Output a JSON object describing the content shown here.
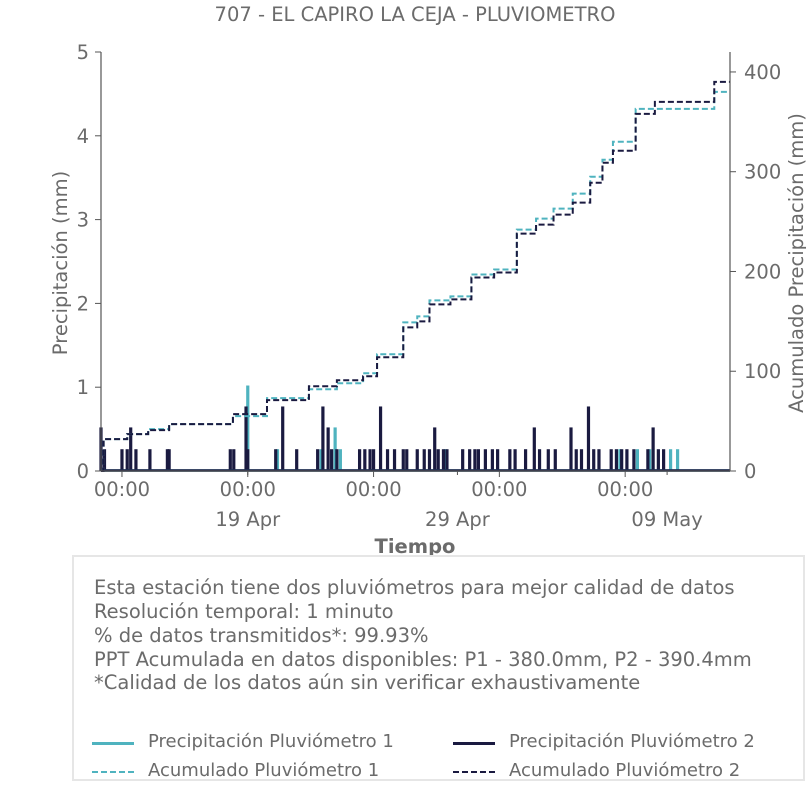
{
  "chart_data": {
    "type": "line",
    "title": "707 - EL CAPIRO LA CEJA - PLUVIOMETRO",
    "xlabel": "Tiempo",
    "ylabel_left": "Precipitación (mm)",
    "ylabel_right": "Acumulado Precipitación (mm)",
    "x_range_days": [
      "2024-04-12",
      "2024-05-12"
    ],
    "ylim_left": [
      0,
      5
    ],
    "ylim_right": [
      0,
      420
    ],
    "yticks_left": [
      "0",
      "1",
      "2",
      "3",
      "4",
      "5"
    ],
    "yticks_right": [
      "0",
      "100",
      "200",
      "300",
      "400"
    ],
    "xticks_major": [
      {
        "date": "2024-04-13",
        "label": "00:00"
      },
      {
        "date": "2024-04-19",
        "label": "00:00"
      },
      {
        "date": "2024-04-25",
        "label": "00:00"
      },
      {
        "date": "2024-05-01",
        "label": "00:00"
      },
      {
        "date": "2024-05-07",
        "label": "00:00"
      }
    ],
    "xticks_minor": [
      {
        "date": "2024-04-19",
        "label": "19 Apr"
      },
      {
        "date": "2024-04-29",
        "label": "29 Apr"
      },
      {
        "date": "2024-05-09",
        "label": "09 May"
      }
    ],
    "colors": {
      "p1": "#4fb3bf",
      "p2": "#1a1a40",
      "axis": "#555555",
      "text": "#6b6b6b"
    },
    "series": [
      {
        "name": "Precipitación Pluviómetro 1",
        "style": "bars",
        "color": "#4fb3bf",
        "x": [
          "2024-04-19T00:00",
          "2024-04-20T10:00",
          "2024-04-22T12:00",
          "2024-04-23T04:00",
          "2024-04-23T10:00",
          "2024-04-28T10:00",
          "2024-05-06T18:00",
          "2024-05-07T14:00",
          "2024-05-08T04:00",
          "2024-05-09T04:00",
          "2024-05-09T12:00"
        ],
        "y": [
          1.02,
          0.26,
          0.26,
          0.52,
          0.26,
          0.26,
          0.26,
          0.26,
          0.26,
          0.26,
          0.26
        ]
      },
      {
        "name": "Precipitación Pluviómetro 2",
        "style": "bars",
        "color": "#1a1a40",
        "x": [
          "2024-04-12T00:00",
          "2024-04-12T04:00",
          "2024-04-13T00:00",
          "2024-04-13T06:00",
          "2024-04-13T10:00",
          "2024-04-13T16:00",
          "2024-04-14T08:00",
          "2024-04-15T04:00",
          "2024-04-15T06:00",
          "2024-04-18T04:00",
          "2024-04-18T08:00",
          "2024-04-18T22:00",
          "2024-04-19T00:00",
          "2024-04-20T08:00",
          "2024-04-20T16:00",
          "2024-04-21T08:00",
          "2024-04-22T08:00",
          "2024-04-22T14:00",
          "2024-04-22T20:00",
          "2024-04-23T00:00",
          "2024-04-23T06:00",
          "2024-04-24T08:00",
          "2024-04-24T14:00",
          "2024-04-24T20:00",
          "2024-04-25T00:00",
          "2024-04-25T08:00",
          "2024-04-25T16:00",
          "2024-04-26T00:00",
          "2024-04-26T10:00",
          "2024-04-26T14:00",
          "2024-04-27T02:00",
          "2024-04-27T10:00",
          "2024-04-27T16:00",
          "2024-04-27T22:00",
          "2024-04-28T02:00",
          "2024-04-28T08:00",
          "2024-04-28T12:00",
          "2024-04-29T06:00",
          "2024-04-29T14:00",
          "2024-04-29T20:00",
          "2024-04-30T00:00",
          "2024-04-30T08:00",
          "2024-04-30T16:00",
          "2024-04-30T22:00",
          "2024-05-01T12:00",
          "2024-05-01T18:00",
          "2024-05-02T06:00",
          "2024-05-02T16:00",
          "2024-05-02T22:00",
          "2024-05-03T08:00",
          "2024-05-03T16:00",
          "2024-05-04T10:00",
          "2024-05-04T16:00",
          "2024-05-04T22:00",
          "2024-05-05T06:00",
          "2024-05-05T12:00",
          "2024-05-05T18:00",
          "2024-05-06T08:00",
          "2024-05-06T14:00",
          "2024-05-06T20:00",
          "2024-05-07T02:00",
          "2024-05-07T10:00",
          "2024-05-08T02:00",
          "2024-05-08T08:00",
          "2024-05-08T14:00",
          "2024-05-08T20:00"
        ],
        "y": [
          0.52,
          0.26,
          0.26,
          0.26,
          0.52,
          0.26,
          0.26,
          0.26,
          0.26,
          0.26,
          0.26,
          0.77,
          0.26,
          0.26,
          0.77,
          0.26,
          0.26,
          0.77,
          0.52,
          0.26,
          0.26,
          0.26,
          0.26,
          0.26,
          0.26,
          0.77,
          0.26,
          0.26,
          0.26,
          0.26,
          0.26,
          0.26,
          0.26,
          0.52,
          0.26,
          0.26,
          0.26,
          0.26,
          0.26,
          0.26,
          0.26,
          0.26,
          0.26,
          0.26,
          0.26,
          0.26,
          0.26,
          0.52,
          0.26,
          0.26,
          0.26,
          0.52,
          0.26,
          0.26,
          0.77,
          0.26,
          0.26,
          0.26,
          0.26,
          0.26,
          0.26,
          0.26,
          0.26,
          0.52,
          0.26,
          0.26
        ]
      },
      {
        "name": "Acumulado Pluviómetro 1",
        "style": "dashed-step",
        "color": "#4fb3bf",
        "x": [
          "2024-04-12T00:00",
          "2024-04-12T03:00",
          "2024-04-13T06:00",
          "2024-04-14T06:00",
          "2024-04-15T06:00",
          "2024-04-18T07:00",
          "2024-04-19T22:00",
          "2024-04-21T22:00",
          "2024-04-23T06:00",
          "2024-04-24T12:00",
          "2024-04-25T04:00",
          "2024-04-26T10:00",
          "2024-04-27T02:00",
          "2024-04-27T16:00",
          "2024-04-28T16:00",
          "2024-04-29T16:00",
          "2024-04-30T18:00",
          "2024-05-01T20:00",
          "2024-05-02T18:00",
          "2024-05-03T14:00",
          "2024-05-04T12:00",
          "2024-05-05T08:00",
          "2024-05-05T22:00",
          "2024-05-06T10:00",
          "2024-05-07T12:00",
          "2024-05-08T10:00",
          "2024-05-11T06:00",
          "2024-05-12T00:00"
        ],
        "y": [
          0,
          32,
          37,
          42,
          47,
          55,
          73,
          82,
          88,
          98,
          117,
          149,
          155,
          171,
          175,
          197,
          202,
          242,
          253,
          263,
          278,
          295,
          312,
          330,
          363,
          363,
          380,
          380
        ]
      },
      {
        "name": "Acumulado Pluviómetro 2",
        "style": "dashed-step",
        "color": "#1a1a40",
        "x": [
          "2024-04-12T00:00",
          "2024-04-12T03:00",
          "2024-04-13T06:00",
          "2024-04-14T06:00",
          "2024-04-15T06:00",
          "2024-04-18T07:00",
          "2024-04-19T22:00",
          "2024-04-21T22:00",
          "2024-04-23T06:00",
          "2024-04-24T12:00",
          "2024-04-25T04:00",
          "2024-04-26T10:00",
          "2024-04-27T02:00",
          "2024-04-27T16:00",
          "2024-04-28T16:00",
          "2024-04-29T16:00",
          "2024-04-30T18:00",
          "2024-05-01T20:00",
          "2024-05-02T18:00",
          "2024-05-03T14:00",
          "2024-05-04T12:00",
          "2024-05-05T08:00",
          "2024-05-05T22:00",
          "2024-05-06T10:00",
          "2024-05-07T12:00",
          "2024-05-08T10:00",
          "2024-05-11T06:00",
          "2024-05-12T00:00"
        ],
        "y": [
          0,
          32,
          37,
          41,
          47,
          57,
          71,
          85,
          91,
          95,
          114,
          144,
          150,
          167,
          172,
          194,
          199,
          238,
          247,
          257,
          269,
          289,
          309,
          321,
          358,
          370,
          390,
          390
        ]
      }
    ]
  },
  "info": {
    "lines": [
      "Esta estación tiene dos pluviómetros para mejor calidad de datos",
      "Resolución temporal: 1 minuto",
      "% de datos transmitidos*: 99.93%",
      "PPT Acumulada en datos disponibles: P1 - 380.0mm, P2 - 390.4mm",
      "*Calidad de los datos aún sin verificar exhaustivamente"
    ]
  },
  "legend": {
    "items": [
      {
        "label": "Precipitación Pluviómetro 1",
        "color": "#4fb3bf",
        "style": "solid"
      },
      {
        "label": "Precipitación Pluviómetro 2",
        "color": "#1a1a40",
        "style": "solid"
      },
      {
        "label": "Acumulado Pluviómetro 1",
        "color": "#4fb3bf",
        "style": "dashed"
      },
      {
        "label": "Acumulado Pluviómetro 2",
        "color": "#1a1a40",
        "style": "dashed"
      }
    ]
  }
}
